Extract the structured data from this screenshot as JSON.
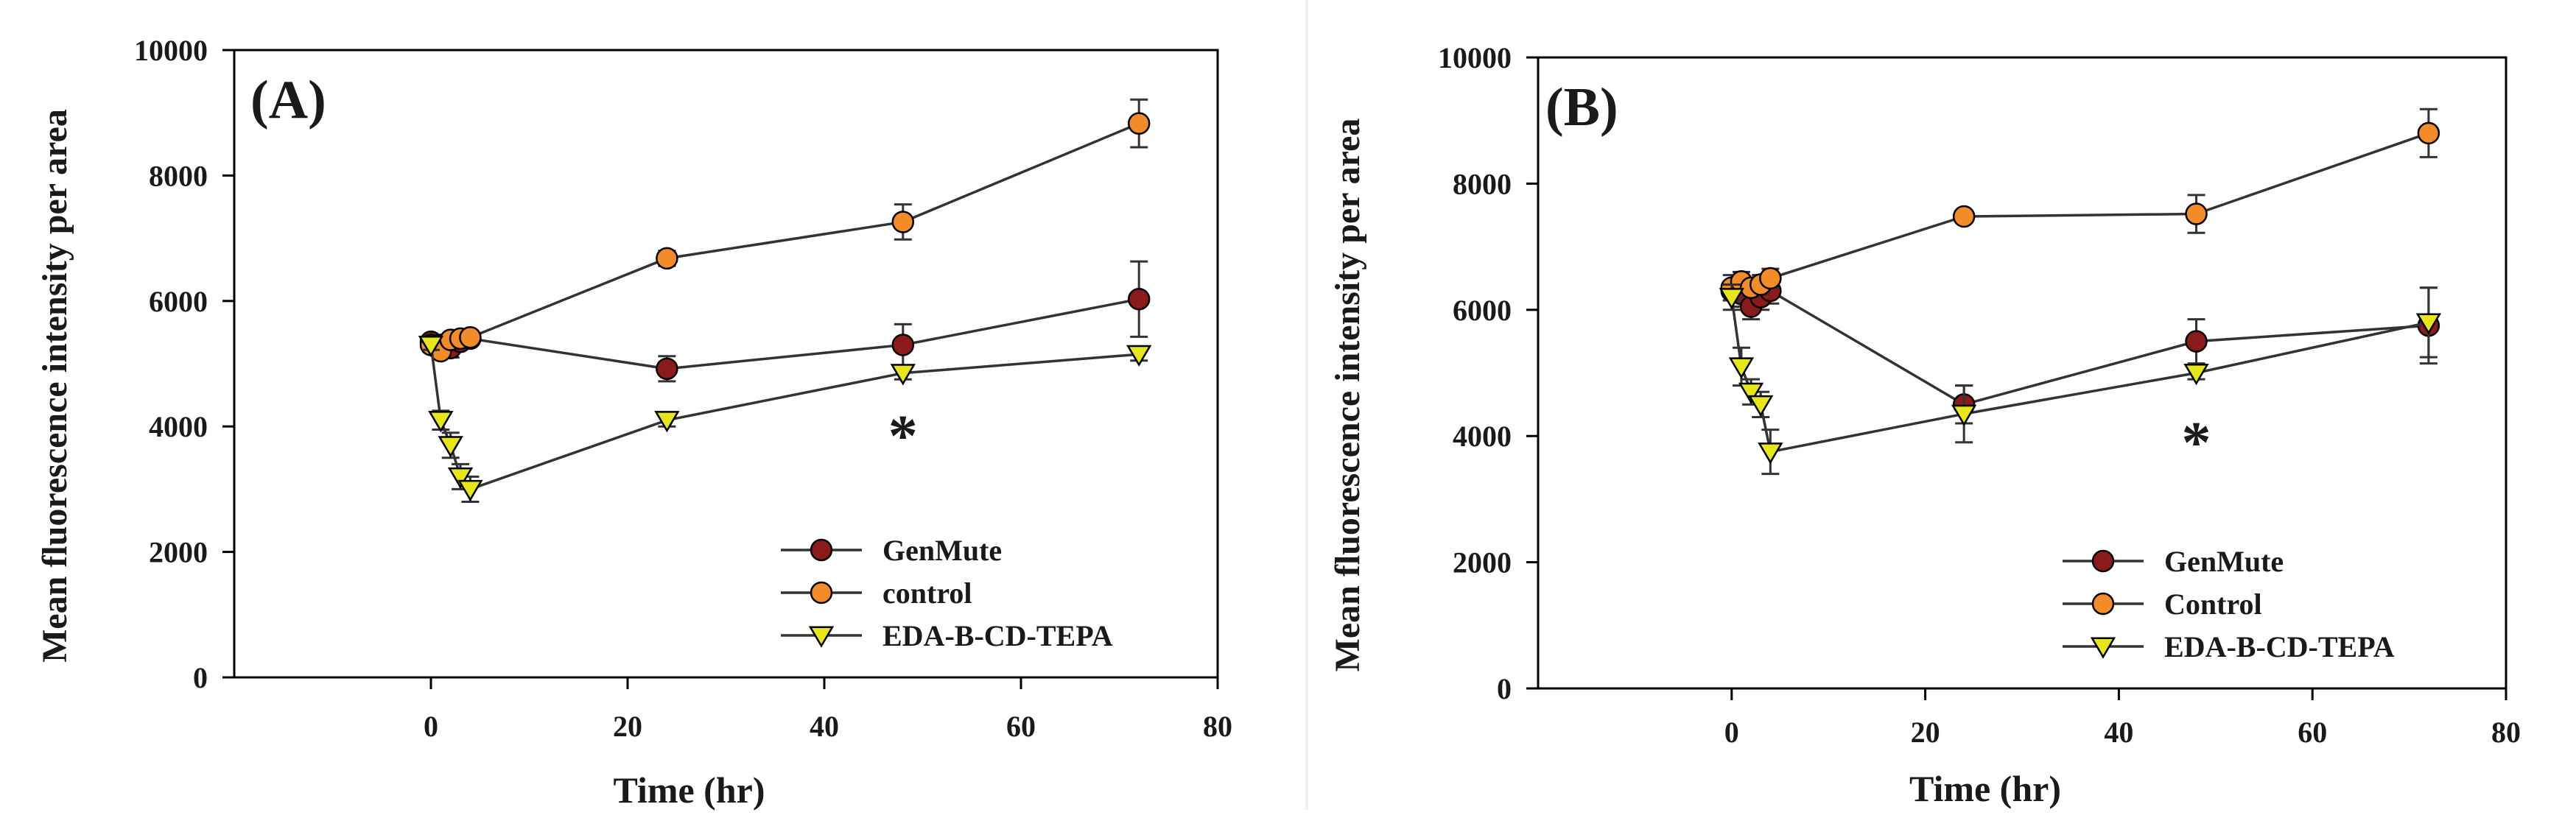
{
  "chart_data": [
    {
      "type": "line",
      "panel_label": "(A)",
      "xlabel": "Time (hr)",
      "ylabel": "Mean fluorescence intensity per area",
      "xlim": [
        -20,
        80
      ],
      "ylim": [
        0,
        10000
      ],
      "xticks": [
        0,
        20,
        40,
        60,
        80
      ],
      "yticks": [
        0,
        2000,
        4000,
        6000,
        8000,
        10000
      ],
      "legend_position": "bottom-right",
      "annotations": [
        {
          "text": "*",
          "x": 48,
          "y": 4000
        }
      ],
      "series": [
        {
          "name": "GenMute",
          "color": "#8b1a1a",
          "marker": "circle",
          "x": [
            0,
            1,
            2,
            3,
            4,
            24,
            48,
            72
          ],
          "values": [
            5350,
            5300,
            5250,
            5350,
            5400,
            4920,
            5300,
            6030
          ],
          "errors": [
            60,
            70,
            150,
            80,
            60,
            200,
            330,
            600
          ]
        },
        {
          "name": "control",
          "color": "#f28c28",
          "marker": "circle",
          "x": [
            0,
            1,
            2,
            3,
            4,
            24,
            48,
            72
          ],
          "values": [
            5300,
            5200,
            5380,
            5400,
            5420,
            6680,
            7260,
            8830
          ],
          "errors": [
            60,
            80,
            80,
            80,
            60,
            120,
            280,
            380
          ]
        },
        {
          "name": "EDA-B-CD-TEPA",
          "color": "#e6e61a",
          "marker": "triangle-down",
          "x": [
            0,
            1,
            2,
            3,
            4,
            24,
            48,
            72
          ],
          "values": [
            5300,
            4100,
            3700,
            3200,
            3000,
            4100,
            4850,
            5150
          ],
          "errors": [
            80,
            150,
            200,
            200,
            200,
            100,
            100,
            100
          ]
        }
      ]
    },
    {
      "type": "line",
      "panel_label": "(B)",
      "xlabel": "Time (hr)",
      "ylabel": "Mean fluorescence intensity per area",
      "xlim": [
        -20,
        80
      ],
      "ylim": [
        0,
        10000
      ],
      "xticks": [
        0,
        20,
        40,
        60,
        80
      ],
      "yticks": [
        0,
        2000,
        4000,
        6000,
        8000,
        10000
      ],
      "legend_position": "bottom-right",
      "annotations": [
        {
          "text": "*",
          "x": 48,
          "y": 4050
        }
      ],
      "series": [
        {
          "name": "GenMute",
          "color": "#8b1a1a",
          "marker": "circle",
          "x": [
            0,
            1,
            2,
            3,
            4,
            24,
            48,
            72
          ],
          "values": [
            6300,
            6250,
            6050,
            6200,
            6300,
            4500,
            5500,
            5750
          ],
          "errors": [
            150,
            200,
            200,
            200,
            200,
            300,
            350,
            600
          ]
        },
        {
          "name": "Control",
          "color": "#f28c28",
          "marker": "circle",
          "x": [
            0,
            1,
            2,
            3,
            4,
            24,
            48,
            72
          ],
          "values": [
            6350,
            6450,
            6350,
            6400,
            6500,
            7480,
            7520,
            8800
          ],
          "errors": [
            200,
            150,
            150,
            150,
            150,
            80,
            300,
            380
          ]
        },
        {
          "name": "EDA-B-CD-TEPA",
          "color": "#e6e61a",
          "marker": "triangle-down",
          "x": [
            0,
            1,
            2,
            3,
            4,
            24,
            48,
            72
          ],
          "values": [
            6200,
            5100,
            4700,
            4500,
            3750,
            4350,
            5000,
            5800
          ],
          "errors": [
            200,
            300,
            200,
            200,
            350,
            450,
            100,
            550
          ]
        }
      ]
    }
  ]
}
